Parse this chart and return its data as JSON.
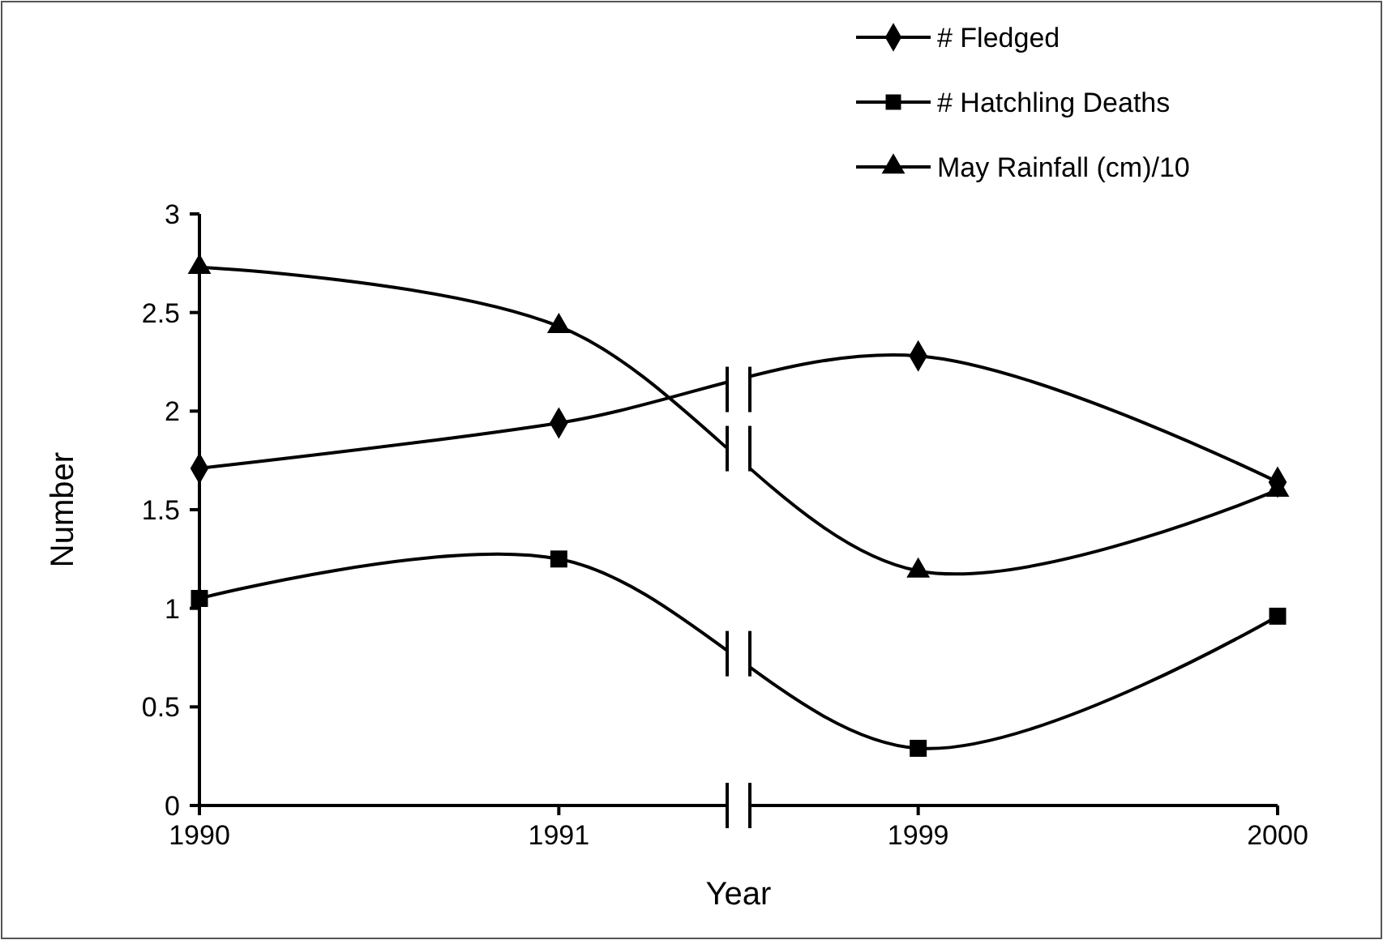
{
  "chart_data": {
    "type": "line",
    "xlabel": "Year",
    "ylabel": "Number",
    "categories": [
      "1990",
      "1991",
      "1999",
      "2000"
    ],
    "ylim": [
      0,
      3
    ],
    "yticks": [
      0,
      0.5,
      1,
      1.5,
      2,
      2.5,
      3
    ],
    "grid": false,
    "legend": "top right",
    "line_style": "solid",
    "series": [
      {
        "name": "# Fledged",
        "color": "#000000",
        "marker": "diamond",
        "values": [
          1.71,
          1.94,
          2.28,
          1.64
        ]
      },
      {
        "name": "# Hatchling Deaths",
        "color": "#000000",
        "marker": "square",
        "values": [
          1.05,
          1.25,
          0.29,
          0.96
        ]
      },
      {
        "name": "May Rainfall (cm)/10",
        "color": "#000000",
        "marker": "triangle",
        "values": [
          2.73,
          2.43,
          1.19,
          1.6
        ]
      }
    ]
  }
}
